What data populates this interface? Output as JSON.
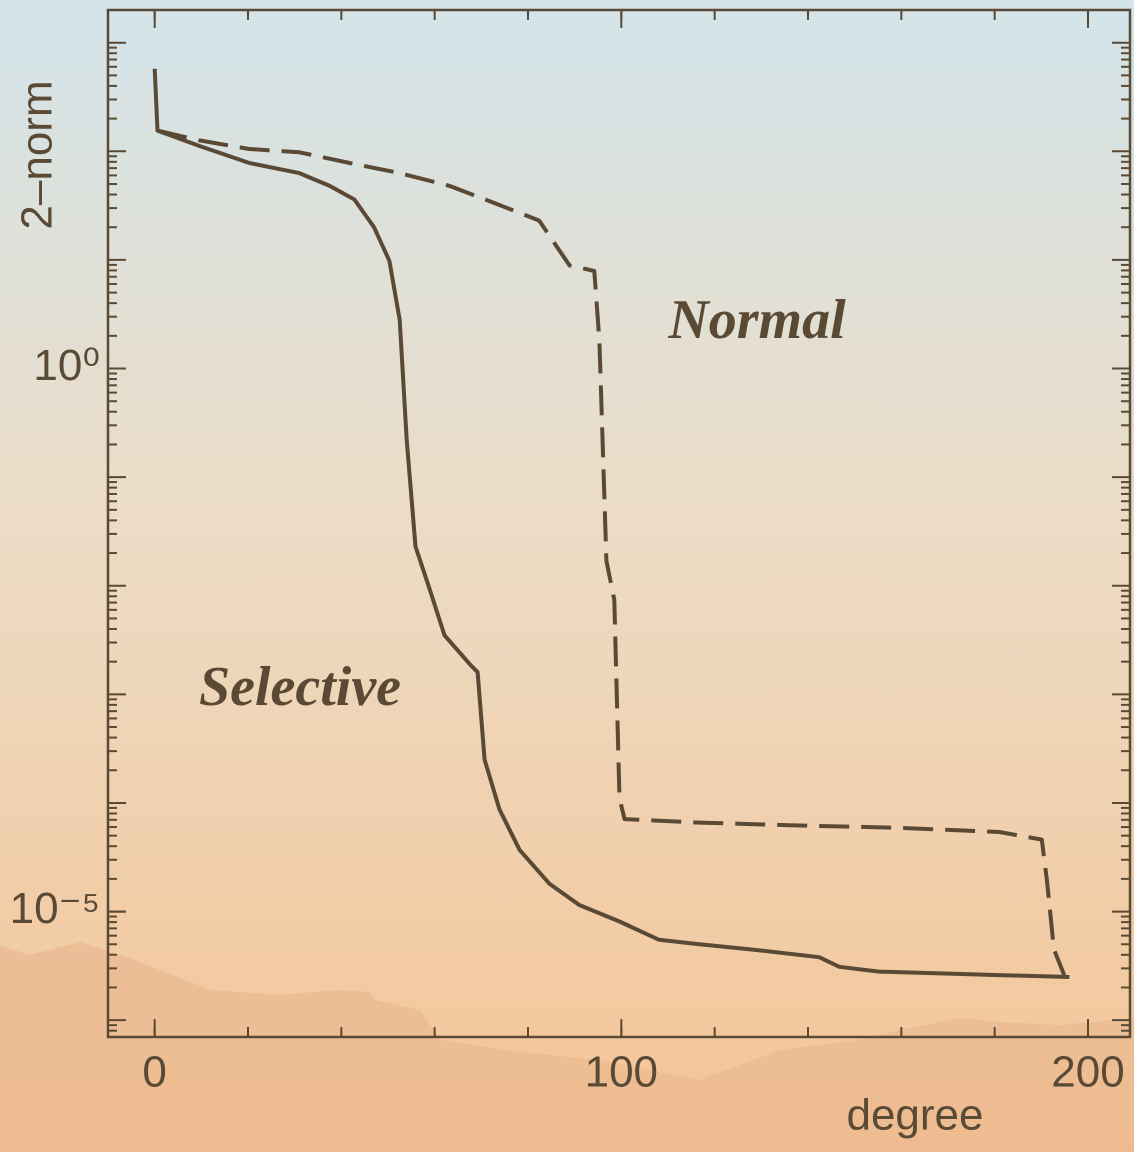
{
  "chart_data": {
    "type": "line",
    "x_label": "degree",
    "y_label": "2–norm",
    "log_y": true,
    "color": "#5a4a35",
    "xlim": [
      -10,
      209
    ],
    "ylim": [
      7e-07,
      2000
    ],
    "xticks": [
      0,
      100,
      200
    ],
    "yticks": [
      {
        "value": 1,
        "label": "10⁰"
      },
      {
        "value": 1e-05,
        "label": "10⁻⁵"
      }
    ],
    "series": [
      {
        "name": "Selective",
        "dashed": false,
        "x": [
          0,
          0.6,
          9.6,
          20.3,
          31,
          37.5,
          42.8,
          47,
          50.3,
          52.5,
          54,
          55.9,
          59,
          62.1,
          67.5,
          69.2,
          70.7,
          73.9,
          78.2,
          84.6,
          91,
          99.6,
          108.1,
          116.7,
          127.4,
          142.4,
          146.7,
          155.2,
          181,
          196
        ],
        "values": [
          575,
          155,
          112,
          78,
          63,
          48,
          36,
          20,
          9.8,
          2.8,
          0.22,
          0.023,
          0.0091,
          0.0035,
          0.0019,
          0.0016,
          0.00025,
          8.7e-05,
          3.7e-05,
          1.8e-05,
          1.15e-05,
          8.1e-06,
          5.5e-06,
          5e-06,
          4.5e-06,
          3.8e-06,
          3.1e-06,
          2.8e-06,
          2.6e-06,
          2.5e-06
        ]
      },
      {
        "name": "Normal",
        "dashed": true,
        "x": [
          0.6,
          9.6,
          20.3,
          31,
          41.8,
          52.5,
          63.2,
          73.9,
          82.4,
          88.9,
          94.2,
          95.3,
          96.8,
          98.5,
          99.6,
          100.7,
          116.7,
          138.1,
          159.5,
          181,
          190.1,
          191.2,
          192.7,
          194.9
        ],
        "values": [
          155,
          126,
          105,
          98,
          78,
          63,
          48,
          32,
          23,
          8.9,
          7.9,
          1.8,
          0.017,
          0.0074,
          0.00011,
          7.1e-05,
          6.6e-05,
          6.2e-05,
          5.9e-05,
          5.4e-05,
          4.6e-05,
          1.95e-05,
          4.5e-06,
          2.6e-06
        ]
      }
    ]
  }
}
